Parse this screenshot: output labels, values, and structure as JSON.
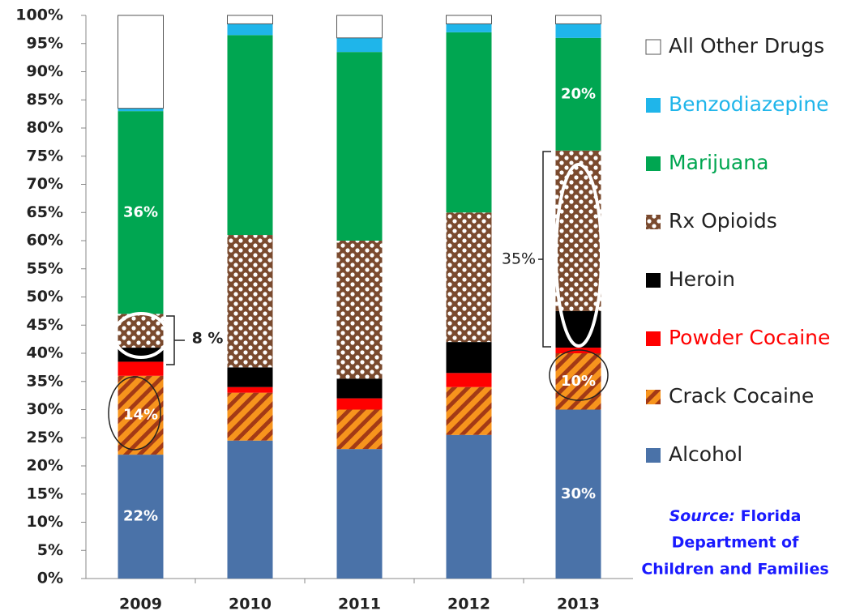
{
  "chart_data": {
    "type": "stacked_bar",
    "categories": [
      "2009",
      "2010",
      "2011",
      "2012",
      "2013"
    ],
    "ylim": [
      0,
      100
    ],
    "yticks": [
      {
        "value": 0,
        "label": "0%"
      },
      {
        "value": 5,
        "label": "5%"
      },
      {
        "value": 10,
        "label": "10%"
      },
      {
        "value": 15,
        "label": "15%"
      },
      {
        "value": 20,
        "label": "20%"
      },
      {
        "value": 25,
        "label": "25%"
      },
      {
        "value": 30,
        "label": "30%"
      },
      {
        "value": 35,
        "label": "35%"
      },
      {
        "value": 40,
        "label": "40%"
      },
      {
        "value": 45,
        "label": "45%"
      },
      {
        "value": 50,
        "label": "50%"
      },
      {
        "value": 55,
        "label": "55%"
      },
      {
        "value": 60,
        "label": "60%"
      },
      {
        "value": 65,
        "label": "65%"
      },
      {
        "value": 70,
        "label": "70%"
      },
      {
        "value": 75,
        "label": "75%"
      },
      {
        "value": 80,
        "label": "80%"
      },
      {
        "value": 85,
        "label": "85%"
      },
      {
        "value": 90,
        "label": "90%"
      },
      {
        "value": 95,
        "label": "95%"
      },
      {
        "value": 100,
        "label": "100%"
      }
    ],
    "grid": false,
    "legend": "right",
    "series": [
      {
        "name": "Alcohol",
        "color": "#4a72a8",
        "legend_text_color": "#222222",
        "values": [
          22,
          24.5,
          23,
          25.5,
          30
        ],
        "value_labels": [
          "22%",
          null,
          null,
          null,
          "30%"
        ]
      },
      {
        "name": "Crack Cocaine",
        "color": "#f7941d",
        "pattern": "stripes",
        "legend_text_color": "#222222",
        "values": [
          14,
          8.5,
          7,
          8.5,
          10
        ],
        "value_labels": [
          "14%",
          null,
          null,
          null,
          "10%"
        ]
      },
      {
        "name": "Powder Cocaine",
        "color": "#ff0000",
        "legend_text_color": "#ff0000",
        "values": [
          2.5,
          1,
          2,
          2.5,
          1
        ]
      },
      {
        "name": "Heroin",
        "color": "#000000",
        "legend_text_color": "#222222",
        "values": [
          2.5,
          3.5,
          3.5,
          5.5,
          6.5
        ]
      },
      {
        "name": "Rx Opioids",
        "color": "#7a4a2e",
        "pattern": "dots",
        "legend_text_color": "#222222",
        "values": [
          6,
          23.5,
          24.5,
          23,
          28.5
        ]
      },
      {
        "name": "Marijuana",
        "color": "#00a651",
        "legend_text_color": "#00a651",
        "values": [
          36,
          35.5,
          33.5,
          32,
          20
        ],
        "value_labels": [
          "36%",
          null,
          null,
          null,
          "20%"
        ]
      },
      {
        "name": "Benzodiazepine",
        "color": "#1fb5ea",
        "legend_text_color": "#1fb5ea",
        "values": [
          0.5,
          2,
          2.5,
          1.5,
          2.5
        ]
      },
      {
        "name": "All Other Drugs",
        "color": "#ffffff",
        "legend_text_color": "#222222",
        "values": [
          16.5,
          1.5,
          4,
          1.5,
          1.5
        ]
      }
    ],
    "annotations": [
      "8 %",
      "35%"
    ],
    "source": {
      "label": "Source:",
      "lines": [
        "Florida",
        "Department of",
        "Children and Families"
      ]
    }
  }
}
